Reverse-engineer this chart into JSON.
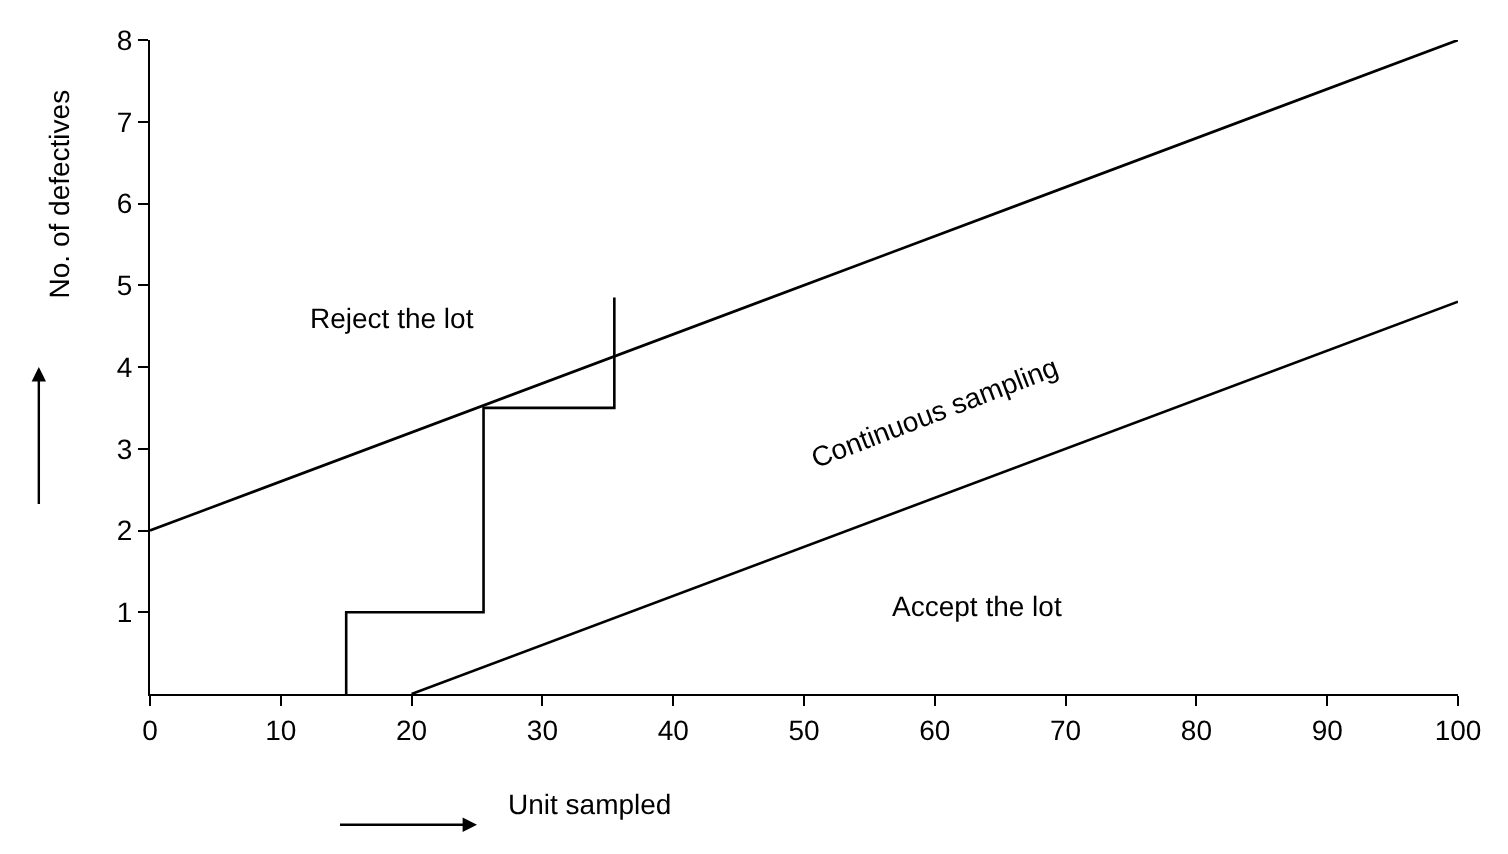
{
  "chart_data": {
    "type": "line",
    "xlabel": "Unit sampled",
    "ylabel": "No. of defectives",
    "series": [
      {
        "color": "#000000",
        "x": [
          0,
          100
        ],
        "values": [
          2,
          8
        ]
      },
      {
        "color": "#000000",
        "x": [
          20,
          100
        ],
        "values": [
          0,
          4.8
        ]
      },
      {
        "color": "#000000",
        "x": [
          15,
          15,
          25.5,
          25.5,
          35.5,
          35.5
        ],
        "values": [
          0,
          1,
          1,
          3.5,
          3.5,
          4.85
        ]
      }
    ],
    "annotations": [
      "Reject the lot",
      "Continuous sampling",
      "Accept the lot"
    ],
    "xlim": [
      0,
      100
    ],
    "xticks": [
      0,
      10,
      20,
      30,
      40,
      50,
      60,
      70,
      80,
      90,
      100
    ],
    "ylim": [
      0,
      8
    ],
    "yticks": [
      1,
      2,
      3,
      4,
      5,
      6,
      7,
      8
    ],
    "marker": "none",
    "line_style": "solid"
  }
}
